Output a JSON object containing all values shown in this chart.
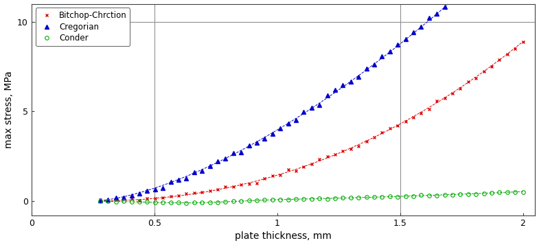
{
  "title": "",
  "xlabel": "plate thickness, mm",
  "ylabel": "max stress, MPa",
  "xlim": [
    0,
    2.05
  ],
  "ylim": [
    -0.8,
    11
  ],
  "xticks": [
    0,
    0.5,
    1,
    1.5,
    2
  ],
  "xtick_labels": [
    "0",
    "0.5",
    "1",
    "1.5",
    "2"
  ],
  "yticks": [
    0,
    5,
    10
  ],
  "vlines": [
    0.5,
    1.5
  ],
  "hlines": [
    10
  ],
  "legend": [
    "Bitchop-Chrction",
    "Cregorian",
    "Conder"
  ],
  "line_colors": [
    "#dd0000",
    "#0000cc",
    "#00aa00"
  ],
  "markers": [
    "x",
    "^",
    "o"
  ],
  "marker_sizes": [
    3,
    4,
    4
  ],
  "figsize": [
    7.85,
    3.57
  ],
  "dpi": 100,
  "background_color": "#ffffff",
  "grid_color": "#909090"
}
